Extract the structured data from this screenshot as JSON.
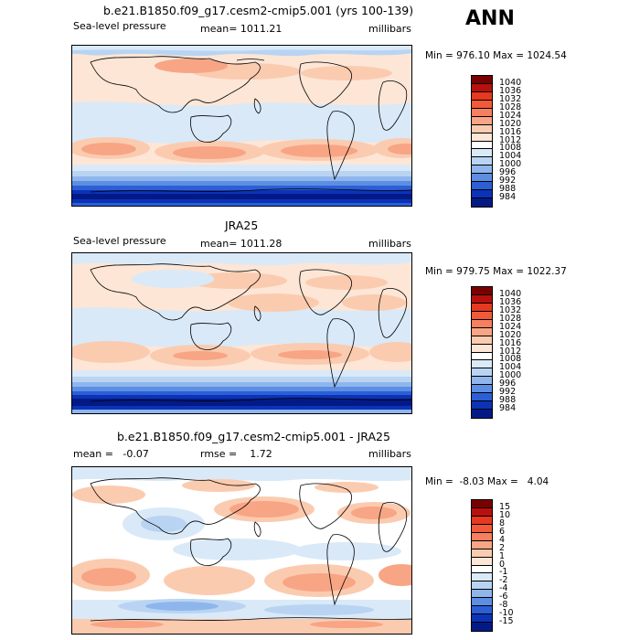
{
  "season": "ANN",
  "panels": [
    {
      "title": "b.e21.B1850.f09_g17.cesm2-cmip5.001 (yrs 100-139)",
      "left_label": "Sea-level pressure",
      "mid_label": "mean= 1011.21",
      "units": "millibars",
      "minmax": "Min = 976.10 Max = 1024.54",
      "colorbar_labels": [
        "1040",
        "1036",
        "1032",
        "1028",
        "1024",
        "1020",
        "1016",
        "1012",
        "1008",
        "1004",
        "1000",
        "996",
        "992",
        "988",
        "984"
      ],
      "colorbar_colors": [
        "#7a0000",
        "#b8100c",
        "#e6391f",
        "#f15a38",
        "#f5805f",
        "#f8a585",
        "#fbcbb0",
        "#fde6d6",
        "#ffffff",
        "#d9e9f8",
        "#b9d4f2",
        "#8fb6ec",
        "#5c8fe3",
        "#2c5fd6",
        "#0b33b8",
        "#031a86"
      ]
    },
    {
      "title": "JRA25",
      "left_label": "Sea-level pressure",
      "mid_label": "mean= 1011.28",
      "units": "millibars",
      "minmax": "Min = 979.75 Max = 1022.37",
      "colorbar_labels": [
        "1040",
        "1036",
        "1032",
        "1028",
        "1024",
        "1020",
        "1016",
        "1012",
        "1008",
        "1004",
        "1000",
        "996",
        "992",
        "988",
        "984"
      ],
      "colorbar_colors": [
        "#7a0000",
        "#b8100c",
        "#e6391f",
        "#f15a38",
        "#f5805f",
        "#f8a585",
        "#fbcbb0",
        "#fde6d6",
        "#ffffff",
        "#d9e9f8",
        "#b9d4f2",
        "#8fb6ec",
        "#5c8fe3",
        "#2c5fd6",
        "#0b33b8",
        "#031a86"
      ]
    },
    {
      "title": "b.e21.B1850.f09_g17.cesm2-cmip5.001 - JRA25",
      "left_label": "mean =   -0.07",
      "mid_label": "rmse =    1.72",
      "units": "millibars",
      "minmax": "Min =  -8.03 Max =   4.04",
      "colorbar_labels": [
        "15",
        "10",
        "8",
        "6",
        "4",
        "2",
        "1",
        "0",
        "-1",
        "-2",
        "-4",
        "-6",
        "-8",
        "-10",
        "-15"
      ],
      "colorbar_colors": [
        "#7a0000",
        "#b8100c",
        "#e6391f",
        "#f15a38",
        "#f5805f",
        "#f8a585",
        "#fbcbb0",
        "#fde6d6",
        "#ffffff",
        "#d9e9f8",
        "#b9d4f2",
        "#8fb6ec",
        "#5c8fe3",
        "#2c5fd6",
        "#0b33b8",
        "#031a86"
      ]
    }
  ]
}
